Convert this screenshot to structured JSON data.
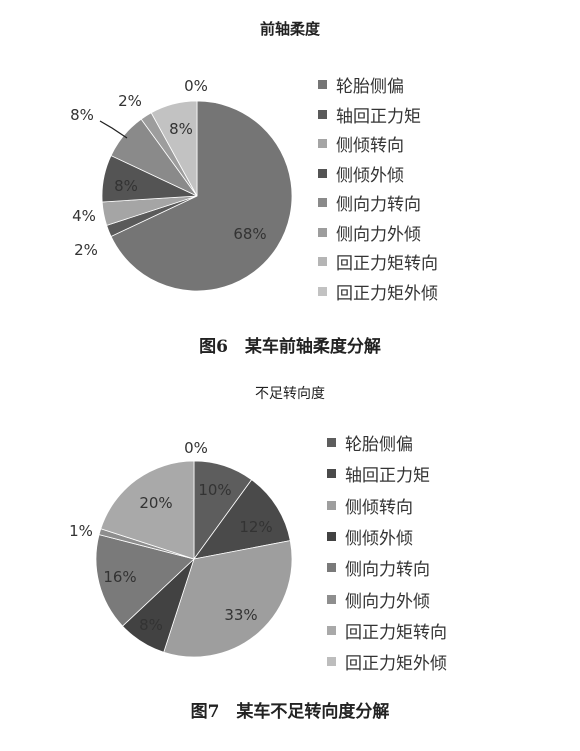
{
  "chart_data": [
    {
      "type": "pie",
      "title": "前轴柔度",
      "caption": "图6　某车前轴柔度分解",
      "legend_position": "right",
      "categories": [
        "轮胎侧偏",
        "轴回正力矩",
        "侧倾转向",
        "侧倾外倾",
        "侧向力转向",
        "侧向力外倾",
        "回正力矩转向",
        "回正力矩外倾"
      ],
      "values": [
        68,
        2,
        4,
        8,
        8,
        2,
        0,
        8
      ],
      "value_labels": [
        "68%",
        "2%",
        "4%",
        "8%",
        "8%",
        "2%",
        "0%",
        "8%"
      ],
      "colors": [
        "#757575",
        "#5a5a5a",
        "#a5a5a5",
        "#545454",
        "#8a8a8a",
        "#9d9d9d",
        "#b5b5b5",
        "#c2c2c2"
      ]
    },
    {
      "type": "pie",
      "title": "不足转向度",
      "caption": "图7　某车不足转向度分解",
      "legend_position": "right",
      "categories": [
        "轮胎侧偏",
        "轴回正力矩",
        "侧倾转向",
        "侧倾外倾",
        "侧向力转向",
        "侧向力外倾",
        "回正力矩转向",
        "回正力矩外倾"
      ],
      "values": [
        10,
        12,
        33,
        8,
        16,
        1,
        20,
        0
      ],
      "value_labels": [
        "10%",
        "12%",
        "33%",
        "8%",
        "16%",
        "1%",
        "20%",
        "0%"
      ],
      "colors": [
        "#5d5d5d",
        "#4a4a4a",
        "#9e9e9e",
        "#424242",
        "#7a7a7a",
        "#8e8e8e",
        "#a9a9a9",
        "#bdbdbd"
      ]
    }
  ]
}
